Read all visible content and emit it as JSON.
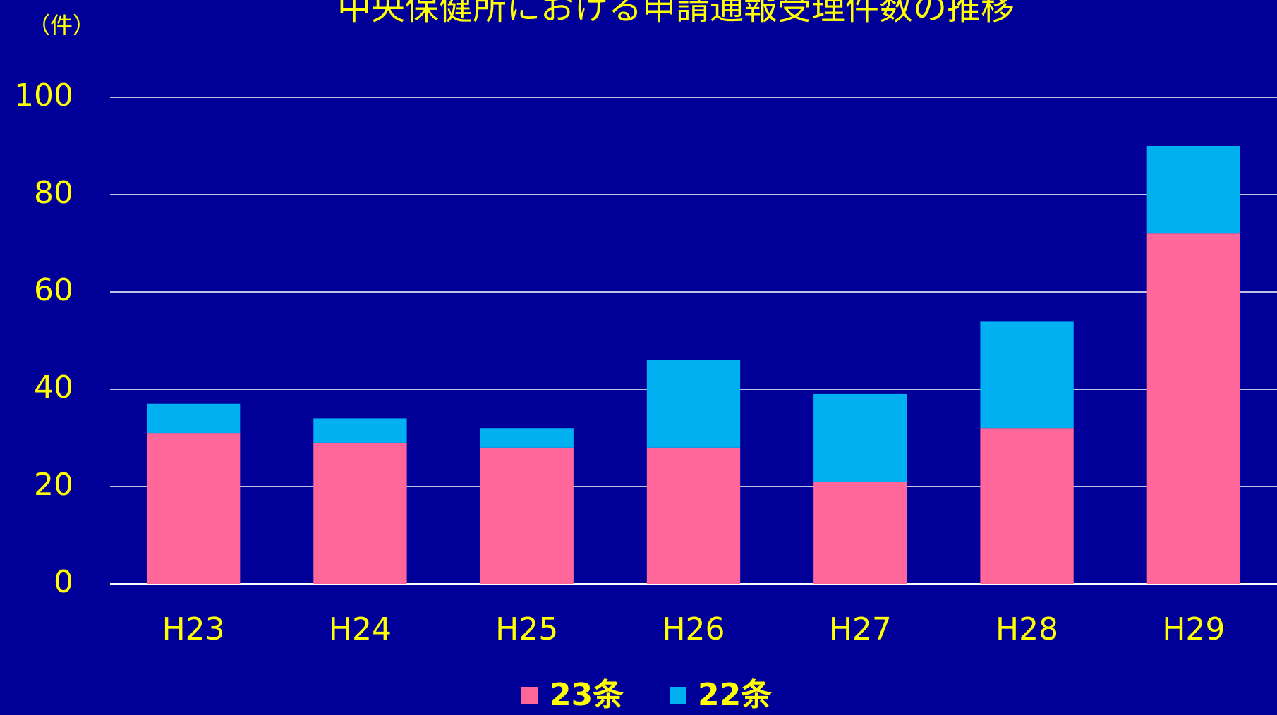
{
  "chart_data": {
    "type": "stacked_bar",
    "title": "中央保健所における申請通報受理件数の推移",
    "y_label": "（件）",
    "categories": [
      "H23",
      "H24",
      "H25",
      "H26",
      "H27",
      "H28",
      "H29"
    ],
    "series": [
      {
        "name": "23条",
        "color": "#ff6699",
        "values": [
          31,
          29,
          28,
          28,
          21,
          32,
          72
        ]
      },
      {
        "name": "22条",
        "color": "#00b0f0",
        "values": [
          6,
          5,
          4,
          18,
          18,
          22,
          18
        ]
      }
    ],
    "ylim": [
      0,
      100
    ],
    "yticks": [
      0,
      20,
      40,
      60,
      80,
      100
    ],
    "grid": true,
    "legend": "bottom"
  }
}
